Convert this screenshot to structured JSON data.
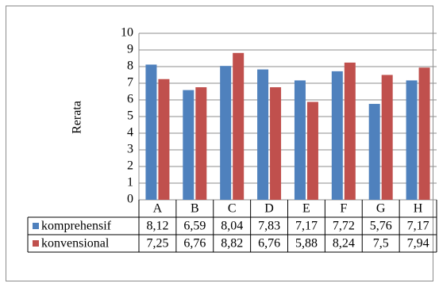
{
  "chart_data": {
    "type": "bar",
    "title": "",
    "xlabel": "",
    "ylabel": "Rerata",
    "ylim": [
      0,
      10
    ],
    "yticks": [
      0,
      1,
      2,
      3,
      4,
      5,
      6,
      7,
      8,
      9,
      10
    ],
    "grid": true,
    "legend_placement": "table rows below chart",
    "categories": [
      "A",
      "B",
      "C",
      "D",
      "E",
      "F",
      "G",
      "H"
    ],
    "series": [
      {
        "name": "komprehensif",
        "color": "#4f81bd",
        "values": [
          8.12,
          6.59,
          8.04,
          7.83,
          7.17,
          7.72,
          5.76,
          7.17
        ],
        "labels": [
          "8,12",
          "6,59",
          "8,04",
          "7,83",
          "7,17",
          "7,72",
          "5,76",
          "7,17"
        ]
      },
      {
        "name": "konvensional",
        "color": "#c0504d",
        "values": [
          7.25,
          6.76,
          8.82,
          6.76,
          5.88,
          8.24,
          7.5,
          7.94
        ],
        "labels": [
          "7,25",
          "6,76",
          "8,82",
          "6,76",
          "5,88",
          "8,24",
          "7,5",
          "7,94"
        ]
      }
    ]
  }
}
